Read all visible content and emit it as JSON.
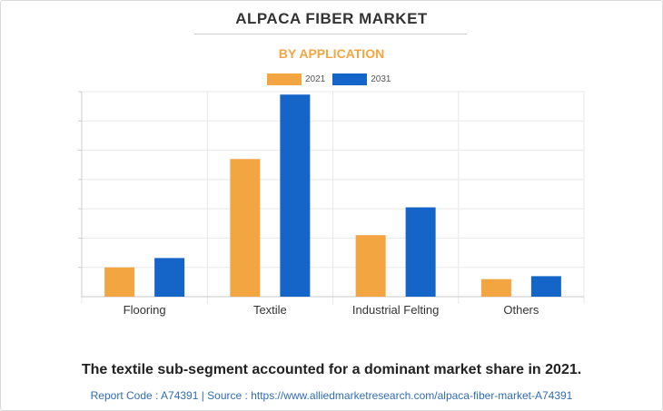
{
  "header": {
    "title": "ALPACA FIBER MARKET",
    "subtitle": "BY APPLICATION"
  },
  "legend": {
    "items": [
      {
        "label": "2021",
        "color": "#f2a541"
      },
      {
        "label": "2031",
        "color": "#1565c8"
      }
    ]
  },
  "chart_data": {
    "type": "bar",
    "title": "ALPACA FIBER MARKET",
    "subtitle": "BY APPLICATION",
    "categories": [
      "Flooring",
      "Textile",
      "Industrial Felting",
      "Others"
    ],
    "series": [
      {
        "name": "2021",
        "values": [
          10,
          47,
          21,
          6
        ],
        "color": "#f2a541"
      },
      {
        "name": "2031",
        "values": [
          13.2,
          69,
          30.5,
          7
        ],
        "color": "#1565c8"
      }
    ],
    "xlabel": "",
    "ylabel": "",
    "ylim": [
      0,
      70
    ],
    "y_tick_labels_shown": false,
    "grid": true,
    "legend_position": "top-center"
  },
  "footer": {
    "summary": "The textile sub-segment accounted for a dominant market share in 2021.",
    "source": "Report Code : A74391  |  Source : https://www.alliedmarketresearch.com/alpaca-fiber-market-A74391"
  }
}
